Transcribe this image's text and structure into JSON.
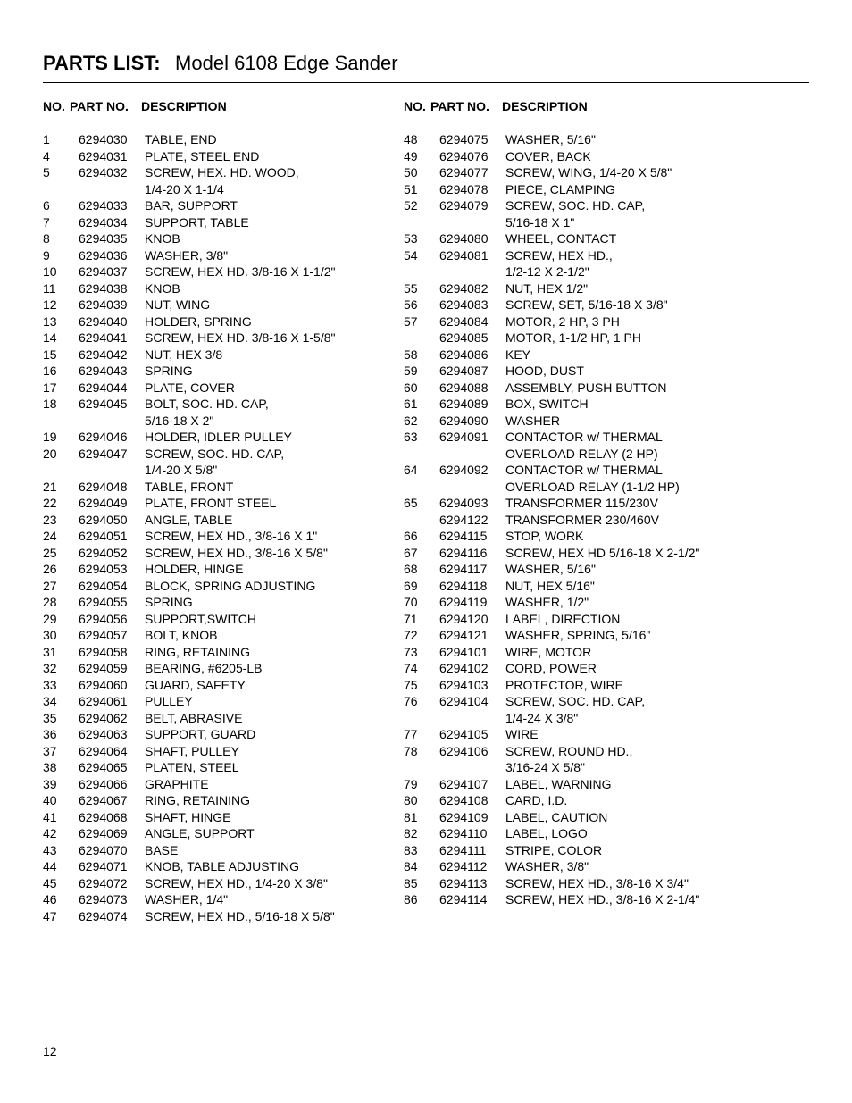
{
  "title": {
    "bold": "PARTS LIST:",
    "regular": "Model 6108 Edge Sander"
  },
  "headers": {
    "no": "NO.",
    "partno": "PART NO.",
    "description": "DESCRIPTION"
  },
  "pageNumber": "12",
  "leftColumn": [
    {
      "no": "1",
      "partno": "6294030",
      "desc": "TABLE, END"
    },
    {
      "no": "4",
      "partno": "6294031",
      "desc": "PLATE, STEEL END"
    },
    {
      "no": "5",
      "partno": "6294032",
      "desc": "SCREW, HEX. HD. WOOD,"
    },
    {
      "no": "",
      "partno": "",
      "desc": "1/4-20 X 1-1/4"
    },
    {
      "no": "6",
      "partno": "6294033",
      "desc": "BAR, SUPPORT"
    },
    {
      "no": "7",
      "partno": "6294034",
      "desc": "SUPPORT, TABLE"
    },
    {
      "no": "8",
      "partno": "6294035",
      "desc": "KNOB"
    },
    {
      "no": "9",
      "partno": "6294036",
      "desc": "WASHER, 3/8\""
    },
    {
      "no": "10",
      "partno": "6294037",
      "desc": "SCREW, HEX HD. 3/8-16 X 1-1/2\""
    },
    {
      "no": "11",
      "partno": "6294038",
      "desc": "KNOB"
    },
    {
      "no": "12",
      "partno": "6294039",
      "desc": "NUT, WING"
    },
    {
      "no": "13",
      "partno": "6294040",
      "desc": "HOLDER, SPRING"
    },
    {
      "no": "14",
      "partno": "6294041",
      "desc": "SCREW, HEX HD. 3/8-16 X 1-5/8\""
    },
    {
      "no": "15",
      "partno": "6294042",
      "desc": "NUT, HEX 3/8"
    },
    {
      "no": "16",
      "partno": "6294043",
      "desc": "SPRING"
    },
    {
      "no": "17",
      "partno": "6294044",
      "desc": "PLATE, COVER"
    },
    {
      "no": "18",
      "partno": "6294045",
      "desc": "BOLT, SOC. HD. CAP,"
    },
    {
      "no": "",
      "partno": "",
      "desc": "5/16-18 X 2\""
    },
    {
      "no": "19",
      "partno": "6294046",
      "desc": "HOLDER, IDLER PULLEY"
    },
    {
      "no": "20",
      "partno": "6294047",
      "desc": "SCREW, SOC. HD. CAP,"
    },
    {
      "no": "",
      "partno": "",
      "desc": "1/4-20 X 5/8\""
    },
    {
      "no": "21",
      "partno": "6294048",
      "desc": "TABLE, FRONT"
    },
    {
      "no": "22",
      "partno": "6294049",
      "desc": "PLATE, FRONT STEEL"
    },
    {
      "no": "23",
      "partno": "6294050",
      "desc": "ANGLE, TABLE"
    },
    {
      "no": "24",
      "partno": "6294051",
      "desc": "SCREW, HEX HD., 3/8-16 X 1\""
    },
    {
      "no": "25",
      "partno": "6294052",
      "desc": "SCREW, HEX HD., 3/8-16 X 5/8\""
    },
    {
      "no": "26",
      "partno": "6294053",
      "desc": "HOLDER, HINGE"
    },
    {
      "no": "27",
      "partno": "6294054",
      "desc": "BLOCK, SPRING ADJUSTING"
    },
    {
      "no": "28",
      "partno": "6294055",
      "desc": "SPRING"
    },
    {
      "no": "29",
      "partno": "6294056",
      "desc": "SUPPORT,SWITCH"
    },
    {
      "no": "30",
      "partno": "6294057",
      "desc": "BOLT, KNOB"
    },
    {
      "no": "31",
      "partno": "6294058",
      "desc": "RING, RETAINING"
    },
    {
      "no": "32",
      "partno": "6294059",
      "desc": "BEARING, #6205-LB"
    },
    {
      "no": "33",
      "partno": "6294060",
      "desc": "GUARD, SAFETY"
    },
    {
      "no": "34",
      "partno": "6294061",
      "desc": "PULLEY"
    },
    {
      "no": "35",
      "partno": "6294062",
      "desc": "BELT, ABRASIVE"
    },
    {
      "no": "36",
      "partno": "6294063",
      "desc": "SUPPORT, GUARD"
    },
    {
      "no": "37",
      "partno": "6294064",
      "desc": "SHAFT, PULLEY"
    },
    {
      "no": "38",
      "partno": "6294065",
      "desc": "PLATEN, STEEL"
    },
    {
      "no": "39",
      "partno": "6294066",
      "desc": "GRAPHITE"
    },
    {
      "no": "40",
      "partno": "6294067",
      "desc": "RING, RETAINING"
    },
    {
      "no": "41",
      "partno": "6294068",
      "desc": "SHAFT, HINGE"
    },
    {
      "no": "42",
      "partno": "6294069",
      "desc": "ANGLE, SUPPORT"
    },
    {
      "no": "43",
      "partno": "6294070",
      "desc": "BASE"
    },
    {
      "no": "44",
      "partno": "6294071",
      "desc": "KNOB, TABLE ADJUSTING"
    },
    {
      "no": "45",
      "partno": "6294072",
      "desc": "SCREW, HEX HD., 1/4-20 X 3/8\""
    },
    {
      "no": "46",
      "partno": "6294073",
      "desc": "WASHER, 1/4\""
    },
    {
      "no": "47",
      "partno": "6294074",
      "desc": "SCREW, HEX HD., 5/16-18 X 5/8\""
    }
  ],
  "rightColumn": [
    {
      "no": "48",
      "partno": "6294075",
      "desc": "WASHER, 5/16\""
    },
    {
      "no": "49",
      "partno": "6294076",
      "desc": "COVER, BACK"
    },
    {
      "no": "50",
      "partno": "6294077",
      "desc": "SCREW, WING, 1/4-20 X 5/8\""
    },
    {
      "no": "51",
      "partno": "6294078",
      "desc": "PIECE, CLAMPING"
    },
    {
      "no": "52",
      "partno": "6294079",
      "desc": "SCREW, SOC. HD. CAP,"
    },
    {
      "no": "",
      "partno": "",
      "desc": "5/16-18 X 1\""
    },
    {
      "no": "53",
      "partno": "6294080",
      "desc": "WHEEL, CONTACT"
    },
    {
      "no": "54",
      "partno": "6294081",
      "desc": "SCREW, HEX HD.,"
    },
    {
      "no": "",
      "partno": "",
      "desc": "1/2-12 X 2-1/2\""
    },
    {
      "no": "55",
      "partno": "6294082",
      "desc": "NUT, HEX 1/2\""
    },
    {
      "no": "56",
      "partno": "6294083",
      "desc": "SCREW, SET, 5/16-18 X 3/8\""
    },
    {
      "no": "57",
      "partno": "6294084",
      "desc": "MOTOR, 2 HP, 3 PH"
    },
    {
      "no": "",
      "partno": "6294085",
      "desc": "MOTOR, 1-1/2 HP, 1 PH"
    },
    {
      "no": "58",
      "partno": "6294086",
      "desc": "KEY"
    },
    {
      "no": "59",
      "partno": "6294087",
      "desc": "HOOD, DUST"
    },
    {
      "no": "60",
      "partno": "6294088",
      "desc": "ASSEMBLY, PUSH BUTTON"
    },
    {
      "no": "61",
      "partno": "6294089",
      "desc": "BOX, SWITCH"
    },
    {
      "no": "62",
      "partno": "6294090",
      "desc": "WASHER"
    },
    {
      "no": "63",
      "partno": "6294091",
      "desc": "CONTACTOR w/ THERMAL"
    },
    {
      "no": "",
      "partno": "",
      "desc": "OVERLOAD RELAY (2 HP)"
    },
    {
      "no": "64",
      "partno": "6294092",
      "desc": "CONTACTOR w/ THERMAL"
    },
    {
      "no": "",
      "partno": "",
      "desc": "OVERLOAD RELAY (1-1/2 HP)"
    },
    {
      "no": "65",
      "partno": "6294093",
      "desc": "TRANSFORMER 115/230V"
    },
    {
      "no": "",
      "partno": "6294122",
      "desc": "TRANSFORMER 230/460V"
    },
    {
      "no": "66",
      "partno": "6294115",
      "desc": "STOP, WORK"
    },
    {
      "no": "67",
      "partno": "6294116",
      "desc": "SCREW, HEX HD 5/16-18 X 2-1/2\""
    },
    {
      "no": "68",
      "partno": "6294117",
      "desc": "WASHER, 5/16\""
    },
    {
      "no": "69",
      "partno": "6294118",
      "desc": "NUT, HEX 5/16\""
    },
    {
      "no": "70",
      "partno": "6294119",
      "desc": "WASHER, 1/2\""
    },
    {
      "no": "71",
      "partno": "6294120",
      "desc": "LABEL, DIRECTION"
    },
    {
      "no": "72",
      "partno": "6294121",
      "desc": "WASHER, SPRING, 5/16\""
    },
    {
      "no": "73",
      "partno": "6294101",
      "desc": "WIRE, MOTOR"
    },
    {
      "no": "74",
      "partno": "6294102",
      "desc": "CORD, POWER"
    },
    {
      "no": "75",
      "partno": "6294103",
      "desc": "PROTECTOR, WIRE"
    },
    {
      "no": "76",
      "partno": "6294104",
      "desc": "SCREW, SOC. HD. CAP,"
    },
    {
      "no": "",
      "partno": "",
      "desc": "1/4-24 X 3/8\""
    },
    {
      "no": "77",
      "partno": "6294105",
      "desc": "WIRE"
    },
    {
      "no": "78",
      "partno": "6294106",
      "desc": "SCREW, ROUND HD.,"
    },
    {
      "no": "",
      "partno": "",
      "desc": "3/16-24 X 5/8\""
    },
    {
      "no": "79",
      "partno": "6294107",
      "desc": "LABEL, WARNING"
    },
    {
      "no": "80",
      "partno": "6294108",
      "desc": "CARD, I.D."
    },
    {
      "no": "81",
      "partno": "6294109",
      "desc": "LABEL, CAUTION"
    },
    {
      "no": "82",
      "partno": "6294110",
      "desc": "LABEL, LOGO"
    },
    {
      "no": "83",
      "partno": "6294111",
      "desc": "STRIPE, COLOR"
    },
    {
      "no": "84",
      "partno": "6294112",
      "desc": "WASHER, 3/8\""
    },
    {
      "no": "85",
      "partno": "6294113",
      "desc": "SCREW, HEX HD., 3/8-16 X 3/4\""
    },
    {
      "no": "86",
      "partno": "6294114",
      "desc": "SCREW, HEX HD., 3/8-16 X 2-1/4\""
    }
  ]
}
